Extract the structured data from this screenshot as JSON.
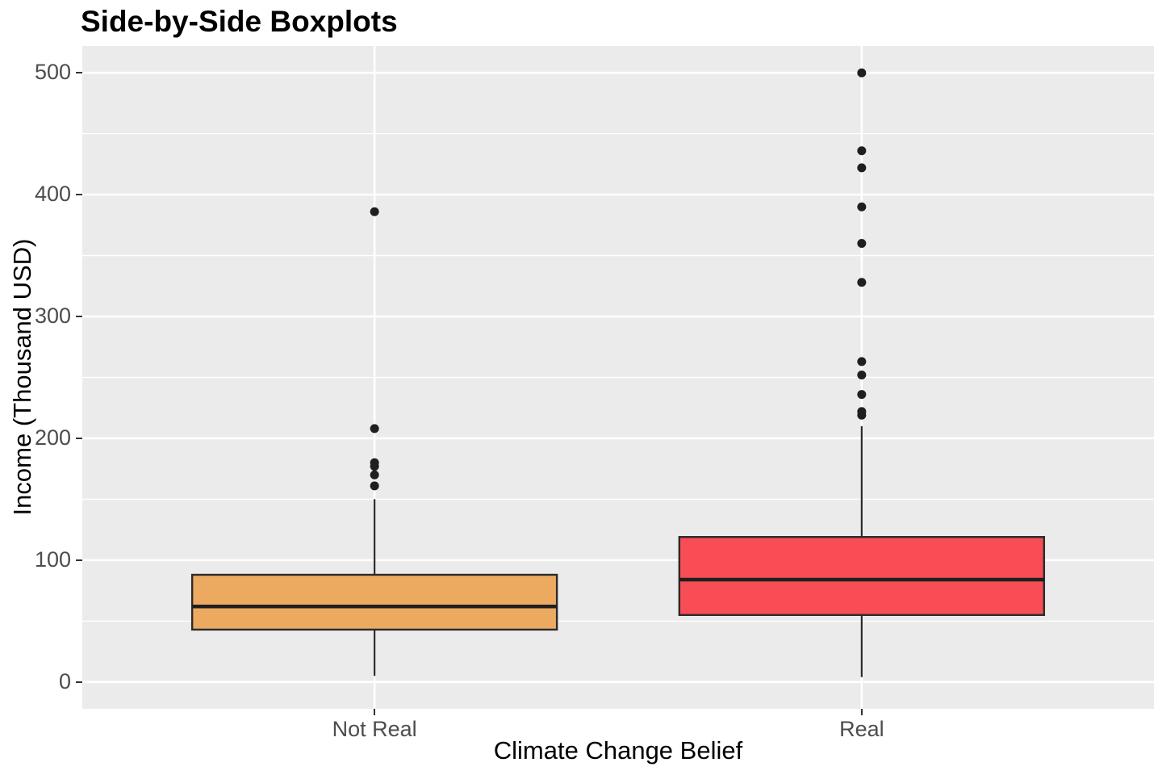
{
  "chart_data": {
    "type": "boxplot",
    "title": "Side-by-Side Boxplots",
    "xlabel": "Climate Change Belief",
    "ylabel": "Income (Thousand USD)",
    "categories": [
      "Not Real",
      "Real"
    ],
    "y_ticks": [
      0,
      100,
      200,
      300,
      400,
      500
    ],
    "y_minor_gridlines": [
      50,
      150,
      250,
      350,
      450
    ],
    "ylim": [
      -22,
      522
    ],
    "grid": "major-and-minor-white-on-gray",
    "legend": "none",
    "series": [
      {
        "name": "Not Real",
        "fill": "#ECAA61",
        "whisker_low": 5,
        "q1": 43,
        "median": 62,
        "q3": 88,
        "whisker_high": 150,
        "outliers": [
          161,
          170,
          177,
          180,
          208,
          386
        ]
      },
      {
        "name": "Real",
        "fill": "#F84D54",
        "whisker_low": 4,
        "q1": 55,
        "median": 84,
        "q3": 119,
        "whisker_high": 210,
        "outliers": [
          219,
          222,
          236,
          252,
          263,
          328,
          360,
          390,
          422,
          436,
          500
        ]
      }
    ],
    "colors": {
      "panel_bg": "#EBEBEB",
      "gridline": "#FFFFFF",
      "box_stroke": "#2B2B2B",
      "median_stroke": "#1F1F1F",
      "outlier_fill": "#1F1F1F",
      "tick_label": "#4D4D4D",
      "tick_mark": "#333333"
    }
  }
}
